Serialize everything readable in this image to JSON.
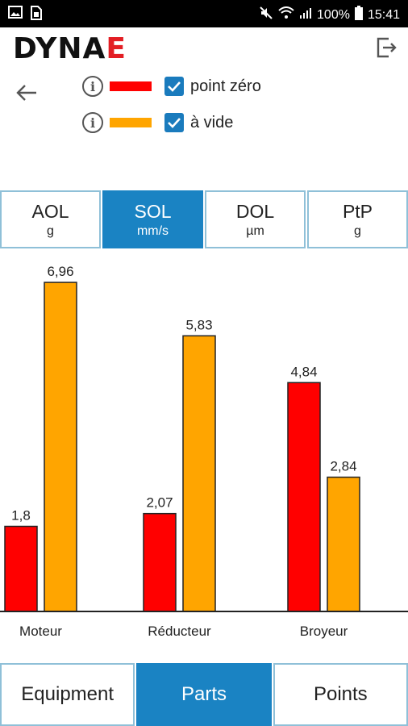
{
  "status_bar": {
    "battery": "100%",
    "time": "15:41"
  },
  "header": {
    "logo_text": "DYNA",
    "logo_accent": "E",
    "icons": [
      "back-arrow-icon",
      "logout-icon"
    ]
  },
  "legend": [
    {
      "label": "point zéro",
      "color": "#ff0000",
      "checked": true
    },
    {
      "label": "à vide",
      "color": "#ffa500",
      "checked": true
    }
  ],
  "metric_tabs": [
    {
      "name": "AOL",
      "unit": "g",
      "active": false
    },
    {
      "name": "SOL",
      "unit": "mm/s",
      "active": true
    },
    {
      "name": "DOL",
      "unit": "µm",
      "active": false
    },
    {
      "name": "PtP",
      "unit": "g",
      "active": false
    }
  ],
  "chart_data": {
    "type": "bar",
    "categories": [
      "Moteur",
      "Réducteur",
      "Broyeur"
    ],
    "series": [
      {
        "name": "point zéro",
        "color": "#ff0000",
        "values": [
          1.8,
          2.07,
          4.84
        ],
        "labels": [
          "1,8",
          "2,07",
          "4,84"
        ]
      },
      {
        "name": "à vide",
        "color": "#ffa500",
        "values": [
          6.96,
          5.83,
          2.84
        ],
        "labels": [
          "6,96",
          "5,83",
          "2,84"
        ]
      }
    ],
    "ylim": [
      0,
      7.2
    ],
    "grid": false,
    "title": "",
    "xlabel": "",
    "ylabel": ""
  },
  "bottom_nav": [
    {
      "label": "Equipment",
      "active": false
    },
    {
      "label": "Parts",
      "active": true
    },
    {
      "label": "Points",
      "active": false
    }
  ]
}
